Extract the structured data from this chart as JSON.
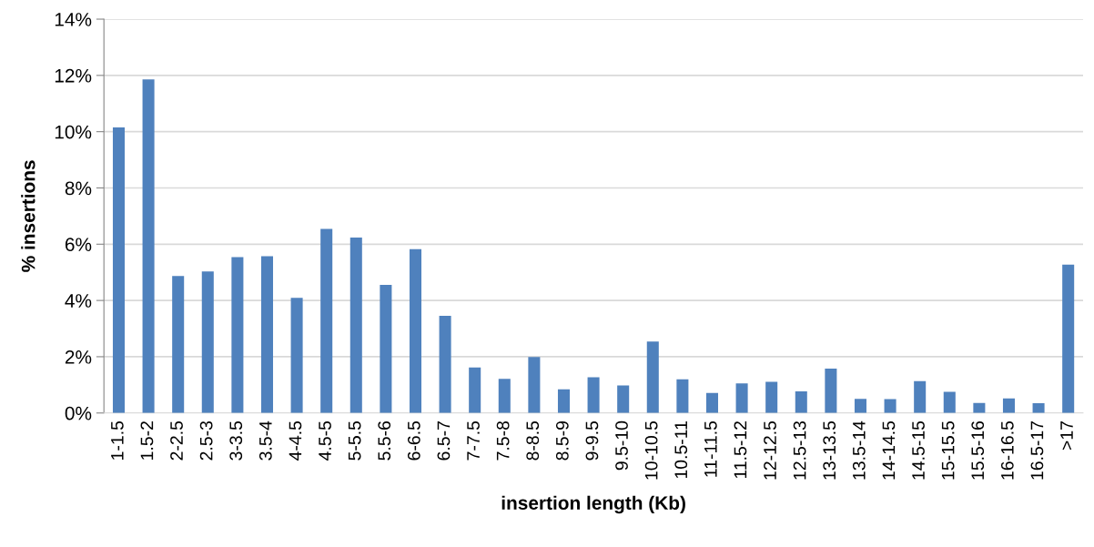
{
  "chart_data": {
    "type": "bar",
    "xlabel": "insertion length (Kb)",
    "ylabel": "% insertions",
    "categories": [
      "1-1.5",
      "1.5-2",
      "2-2.5",
      "2.5-3",
      "3-3.5",
      "3.5-4",
      "4-4.5",
      "4.5-5",
      "5-5.5",
      "5.5-6",
      "6-6.5",
      "6.5-7",
      "7-7.5",
      "7.5-8",
      "8-8.5",
      "8.5-9",
      "9-9.5",
      "9.5-10",
      "10-10.5",
      "10.5-11",
      "11-11.5",
      "11.5-12",
      "12-12.5",
      "12.5-13",
      "13-13.5",
      "13.5-14",
      "14-14.5",
      "14.5-15",
      "15-15.5",
      "15.5-16",
      "16-16.5",
      "16.5-17",
      ">17"
    ],
    "values": [
      10.15,
      11.86,
      4.87,
      5.03,
      5.54,
      5.57,
      4.09,
      6.54,
      6.24,
      4.55,
      5.82,
      3.45,
      1.62,
      1.21,
      1.99,
      0.84,
      1.27,
      0.98,
      2.54,
      1.2,
      0.71,
      1.05,
      1.11,
      0.77,
      1.58,
      0.5,
      0.49,
      1.13,
      0.75,
      0.36,
      0.52,
      0.35,
      5.27
    ],
    "color": "#4f81bd",
    "ylim": [
      0,
      14
    ],
    "yticks": [
      {
        "value": 0,
        "label": "0%"
      },
      {
        "value": 2,
        "label": "2%"
      },
      {
        "value": 4,
        "label": "4%"
      },
      {
        "value": 6,
        "label": "6%"
      },
      {
        "value": 8,
        "label": "8%"
      },
      {
        "value": 10,
        "label": "10%"
      },
      {
        "value": 12,
        "label": "12%"
      },
      {
        "value": 14,
        "label": "14%"
      }
    ],
    "grid": "y"
  }
}
